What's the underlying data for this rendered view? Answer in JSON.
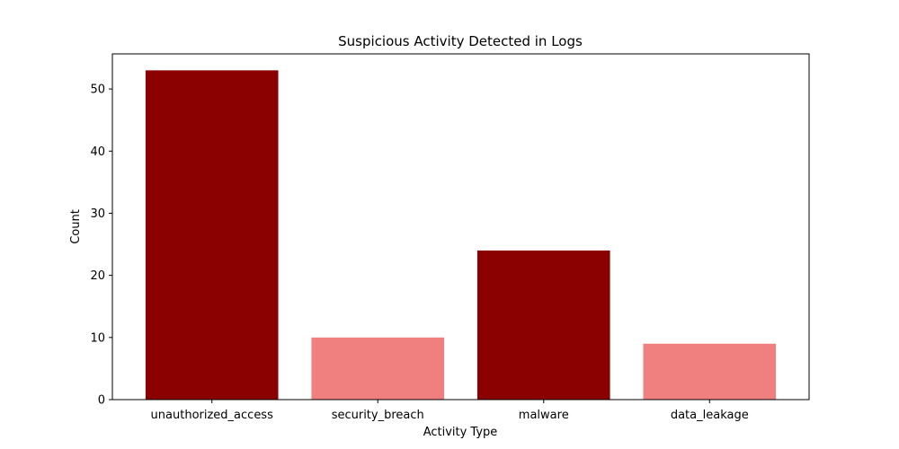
{
  "chart_data": {
    "type": "bar",
    "title": "Suspicious Activity Detected in Logs",
    "xlabel": "Activity Type",
    "ylabel": "Count",
    "categories": [
      "unauthorized_access",
      "security_breach",
      "malware",
      "data_leakage"
    ],
    "values": [
      53,
      10,
      24,
      9
    ],
    "bar_colors": [
      "#8b0000",
      "#f08080",
      "#8b0000",
      "#f08080"
    ],
    "ylim": [
      0,
      55.65
    ],
    "yticks": [
      0,
      10,
      20,
      30,
      40,
      50
    ],
    "grid": false,
    "legend": "none"
  }
}
